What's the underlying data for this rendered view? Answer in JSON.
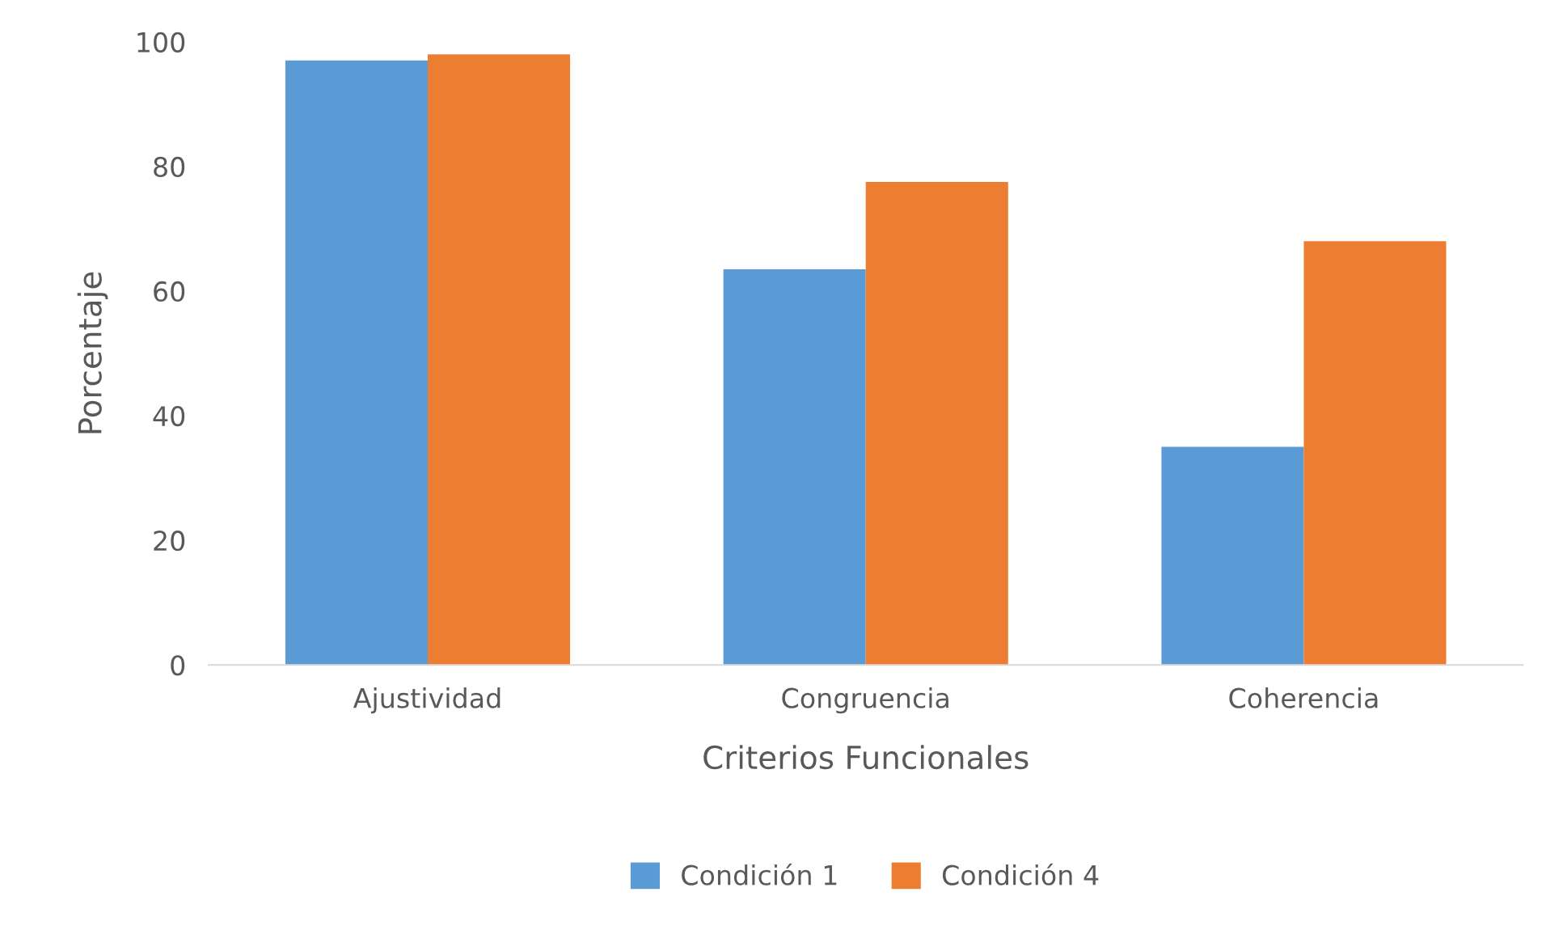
{
  "chart_data": {
    "type": "bar",
    "xlabel": "Criterios Funcionales",
    "ylabel": "Porcentaje",
    "categories": [
      "Ajustividad",
      "Congruencia",
      "Coherencia"
    ],
    "series": [
      {
        "name": "Condición 1",
        "color": "#5b9bd5",
        "values": [
          97,
          63.5,
          35
        ]
      },
      {
        "name": "Condición 4",
        "color": "#ed7d31",
        "values": [
          98,
          77.5,
          68
        ]
      }
    ],
    "ylim": [
      0,
      100
    ],
    "yticks": [
      0,
      20,
      40,
      60,
      80,
      100
    ],
    "grid": false,
    "legend": "bottom"
  }
}
